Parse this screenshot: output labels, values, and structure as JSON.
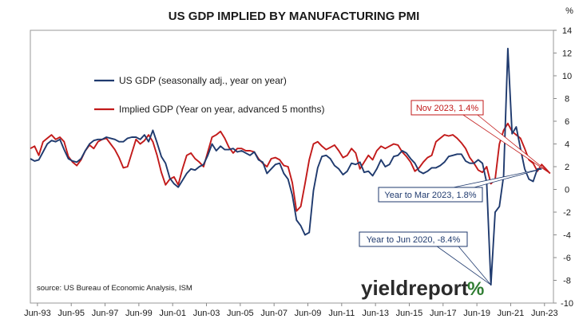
{
  "chart_data": {
    "type": "line",
    "title": "US GDP IMPLIED BY MANUFACTURING PMI",
    "y_unit_label": "%",
    "ylim": [
      -10,
      14
    ],
    "y_ticks": [
      -10,
      -8,
      -6,
      -4,
      -2,
      0,
      2,
      4,
      6,
      8,
      10,
      12,
      14
    ],
    "x_tick_labels": [
      "Jun-93",
      "Jun-95",
      "Jun-97",
      "Jun-99",
      "Jun-01",
      "Jun-03",
      "Jun-05",
      "Jun-07",
      "Jun-09",
      "Jun-11",
      "Jun-13",
      "Jun-15",
      "Jun-17",
      "Jun-19",
      "Jun-21",
      "Jun-23"
    ],
    "grid": false,
    "legend": "upper-left, inside plot",
    "series": [
      {
        "name": "US GDP (seasonally adj., year on year)",
        "color": "#1f3a6e",
        "x": [
          1993.0,
          1993.25,
          1993.5,
          1993.75,
          1994.0,
          1994.25,
          1994.5,
          1994.75,
          1995.0,
          1995.25,
          1995.5,
          1995.75,
          1996.0,
          1996.25,
          1996.5,
          1996.75,
          1997.0,
          1997.25,
          1997.5,
          1997.75,
          1998.0,
          1998.25,
          1998.5,
          1998.75,
          1999.0,
          1999.25,
          1999.5,
          1999.75,
          2000.0,
          2000.25,
          2000.5,
          2000.75,
          2001.0,
          2001.25,
          2001.5,
          2001.75,
          2002.0,
          2002.25,
          2002.5,
          2002.75,
          2003.0,
          2003.25,
          2003.5,
          2003.75,
          2004.0,
          2004.25,
          2004.5,
          2004.75,
          2005.0,
          2005.25,
          2005.5,
          2005.75,
          2006.0,
          2006.25,
          2006.5,
          2006.75,
          2007.0,
          2007.25,
          2007.5,
          2007.75,
          2008.0,
          2008.25,
          2008.5,
          2008.75,
          2009.0,
          2009.25,
          2009.5,
          2009.75,
          2010.0,
          2010.25,
          2010.5,
          2010.75,
          2011.0,
          2011.25,
          2011.5,
          2011.75,
          2012.0,
          2012.25,
          2012.5,
          2012.75,
          2013.0,
          2013.25,
          2013.5,
          2013.75,
          2014.0,
          2014.25,
          2014.5,
          2014.75,
          2015.0,
          2015.25,
          2015.5,
          2015.75,
          2016.0,
          2016.25,
          2016.5,
          2016.75,
          2017.0,
          2017.25,
          2017.5,
          2017.75,
          2018.0,
          2018.25,
          2018.5,
          2018.75,
          2019.0,
          2019.25,
          2019.5,
          2019.75,
          2020.0,
          2020.25,
          2020.5,
          2020.75,
          2021.0,
          2021.25,
          2021.5,
          2021.75,
          2022.0,
          2022.25,
          2022.5,
          2022.75,
          2023.0,
          2023.25
        ],
        "y": [
          2.7,
          2.5,
          2.6,
          3.3,
          4.0,
          4.3,
          4.2,
          4.4,
          3.5,
          2.7,
          2.5,
          2.4,
          2.7,
          3.4,
          4.0,
          4.3,
          4.4,
          4.4,
          4.6,
          4.5,
          4.4,
          4.2,
          4.2,
          4.5,
          4.6,
          4.6,
          4.4,
          4.8,
          4.2,
          5.2,
          4.1,
          2.9,
          2.3,
          1.0,
          0.5,
          0.2,
          0.8,
          1.4,
          1.8,
          1.7,
          2.0,
          2.2,
          3.0,
          4.0,
          3.4,
          3.8,
          3.5,
          3.5,
          3.6,
          3.3,
          3.4,
          3.2,
          3.0,
          3.3,
          2.6,
          2.4,
          1.4,
          1.8,
          2.2,
          2.3,
          1.4,
          0.9,
          -0.5,
          -2.7,
          -3.2,
          -4.0,
          -3.8,
          -0.1,
          1.9,
          2.9,
          3.0,
          2.7,
          2.1,
          1.8,
          1.3,
          1.6,
          2.3,
          2.2,
          2.4,
          1.5,
          1.6,
          1.2,
          1.8,
          2.6,
          2.0,
          2.2,
          2.9,
          3.0,
          3.4,
          3.2,
          2.7,
          2.3,
          1.6,
          1.4,
          1.6,
          1.9,
          1.9,
          2.1,
          2.4,
          2.9,
          3.0,
          3.1,
          3.1,
          2.5,
          2.3,
          2.3,
          2.6,
          2.3,
          0.6,
          -8.4,
          -2.0,
          -1.5,
          1.2,
          12.4,
          4.9,
          5.5,
          3.6,
          1.8,
          0.9,
          0.7,
          1.8,
          1.8
        ]
      },
      {
        "name": "Implied GDP (Year on year, advanced 5 months)",
        "color": "#c21a1a",
        "x": [
          1993.0,
          1993.25,
          1993.5,
          1993.75,
          1994.0,
          1994.25,
          1994.5,
          1994.75,
          1995.0,
          1995.25,
          1995.5,
          1995.75,
          1996.0,
          1996.25,
          1996.5,
          1996.75,
          1997.0,
          1997.25,
          1997.5,
          1997.75,
          1998.0,
          1998.25,
          1998.5,
          1998.75,
          1999.0,
          1999.25,
          1999.5,
          1999.75,
          2000.0,
          2000.25,
          2000.5,
          2000.75,
          2001.0,
          2001.25,
          2001.5,
          2001.75,
          2002.0,
          2002.25,
          2002.5,
          2002.75,
          2003.0,
          2003.25,
          2003.5,
          2003.75,
          2004.0,
          2004.25,
          2004.5,
          2004.75,
          2005.0,
          2005.25,
          2005.5,
          2005.75,
          2006.0,
          2006.25,
          2006.5,
          2006.75,
          2007.0,
          2007.25,
          2007.5,
          2007.75,
          2008.0,
          2008.25,
          2008.5,
          2008.75,
          2009.0,
          2009.25,
          2009.5,
          2009.75,
          2010.0,
          2010.25,
          2010.5,
          2010.75,
          2011.0,
          2011.25,
          2011.5,
          2011.75,
          2012.0,
          2012.25,
          2012.5,
          2012.75,
          2013.0,
          2013.25,
          2013.5,
          2013.75,
          2014.0,
          2014.25,
          2014.5,
          2014.75,
          2015.0,
          2015.25,
          2015.5,
          2015.75,
          2016.0,
          2016.25,
          2016.5,
          2016.75,
          2017.0,
          2017.25,
          2017.5,
          2017.75,
          2018.0,
          2018.25,
          2018.5,
          2018.75,
          2019.0,
          2019.25,
          2019.5,
          2019.75,
          2020.0,
          2020.25,
          2020.5,
          2020.75,
          2021.0,
          2021.25,
          2021.5,
          2021.75,
          2022.0,
          2022.25,
          2022.5,
          2022.75,
          2023.0,
          2023.25,
          2023.5,
          2023.75
        ],
        "y": [
          3.6,
          3.8,
          3.0,
          4.2,
          4.5,
          4.8,
          4.4,
          4.6,
          4.2,
          2.9,
          2.4,
          2.1,
          2.6,
          3.4,
          3.9,
          3.6,
          4.2,
          4.4,
          4.5,
          4.0,
          3.5,
          2.8,
          1.9,
          2.0,
          3.2,
          4.4,
          4.0,
          4.3,
          4.8,
          4.2,
          3.0,
          1.5,
          0.4,
          0.9,
          1.1,
          0.4,
          1.8,
          3.0,
          3.2,
          2.7,
          2.4,
          2.0,
          3.3,
          4.6,
          4.8,
          5.1,
          4.5,
          3.7,
          3.2,
          3.6,
          3.6,
          3.4,
          3.4,
          3.3,
          2.7,
          2.3,
          2.0,
          2.7,
          2.8,
          2.6,
          2.1,
          2.0,
          0.6,
          -1.9,
          -1.5,
          0.5,
          2.6,
          4.0,
          4.2,
          3.8,
          3.5,
          3.7,
          3.9,
          3.4,
          2.8,
          3.0,
          3.6,
          3.2,
          1.8,
          2.4,
          3.0,
          2.6,
          3.4,
          3.8,
          3.6,
          3.8,
          4.0,
          3.9,
          3.3,
          2.9,
          2.4,
          1.6,
          1.9,
          2.4,
          2.8,
          3.0,
          4.2,
          4.5,
          4.8,
          4.7,
          4.8,
          4.5,
          4.1,
          3.6,
          2.8,
          2.3,
          1.7,
          1.5,
          2.0,
          0.5,
          0.9,
          4.0,
          5.2,
          5.8,
          5.1,
          4.8,
          4.5,
          3.6,
          2.6,
          2.3,
          1.6,
          2.2,
          1.8,
          1.4
        ]
      }
    ],
    "annotations": [
      {
        "text": "Nov 2023, 1.4%",
        "series": 1,
        "x": 2023.75,
        "y": 1.4,
        "color": "#c21a1a"
      },
      {
        "text": "Year to Mar 2023, 1.8%",
        "series": 0,
        "x": 2023.25,
        "y": 1.8,
        "color": "#1f3a6e"
      },
      {
        "text": "Year to Jun 2020, -8.4%",
        "series": 0,
        "x": 2020.25,
        "y": -8.4,
        "color": "#1f3a6e"
      }
    ],
    "source": "source: US Bureau of Economic Analysis, ISM",
    "brand": {
      "name": "yieldreport",
      "symbol": "%"
    }
  }
}
